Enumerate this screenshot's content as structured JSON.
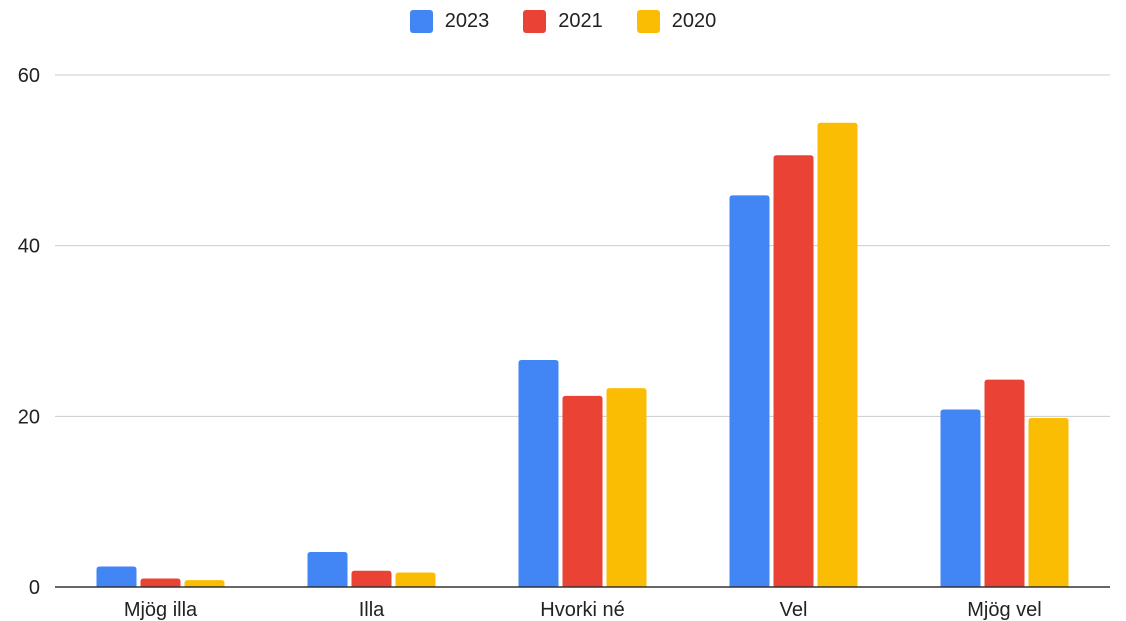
{
  "chart_data": {
    "type": "bar",
    "categories": [
      "Mjög illa",
      "Illa",
      "Hvorki né",
      "Vel",
      "Mjög vel"
    ],
    "series": [
      {
        "name": "2023",
        "color": "#4285f4",
        "values": [
          2.4,
          4.1,
          26.6,
          45.9,
          20.8
        ]
      },
      {
        "name": "2021",
        "color": "#ea4335",
        "values": [
          1.0,
          1.9,
          22.4,
          50.6,
          24.3
        ]
      },
      {
        "name": "2020",
        "color": "#fbbc04",
        "values": [
          0.8,
          1.7,
          23.3,
          54.4,
          19.8
        ]
      }
    ],
    "ylim": [
      0,
      60
    ],
    "yticks": [
      0,
      20,
      40,
      60
    ],
    "grid": true,
    "legend_position": "top"
  }
}
